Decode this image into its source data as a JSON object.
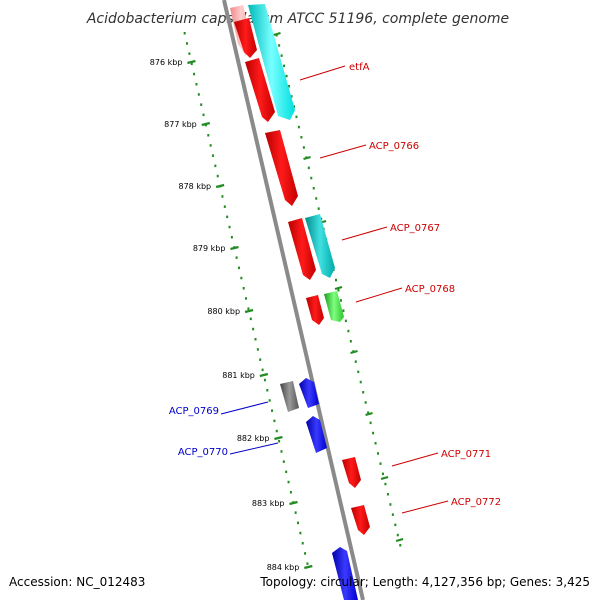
{
  "title": "Acidobacterium capsulatum ATCC 51196, complete genome",
  "footer": {
    "accession": "Accession: NC_012483",
    "summary": "Topology: circular; Length: 4,127,356 bp; Genes: 3,425"
  },
  "colors": {
    "backbone": "#888888",
    "scale_dots": "#228b22",
    "forward_label": "#cc0000",
    "reverse_label": "#0000cc"
  },
  "ticks": [
    {
      "label": "876 kbp"
    },
    {
      "label": "877 kbp"
    },
    {
      "label": "878 kbp"
    },
    {
      "label": "879 kbp"
    },
    {
      "label": "880 kbp"
    },
    {
      "label": "881 kbp"
    },
    {
      "label": "882 kbp"
    },
    {
      "label": "883 kbp"
    },
    {
      "label": "884 kbp"
    }
  ],
  "labels": [
    {
      "text": "etfA",
      "strand": "forward"
    },
    {
      "text": "ACP_0766",
      "strand": "forward"
    },
    {
      "text": "ACP_0767",
      "strand": "forward"
    },
    {
      "text": "ACP_0768",
      "strand": "forward"
    },
    {
      "text": "ACP_0769",
      "strand": "reverse"
    },
    {
      "text": "ACP_0770",
      "strand": "reverse"
    },
    {
      "text": "ACP_0771",
      "strand": "forward"
    },
    {
      "text": "ACP_0772",
      "strand": "forward"
    }
  ]
}
